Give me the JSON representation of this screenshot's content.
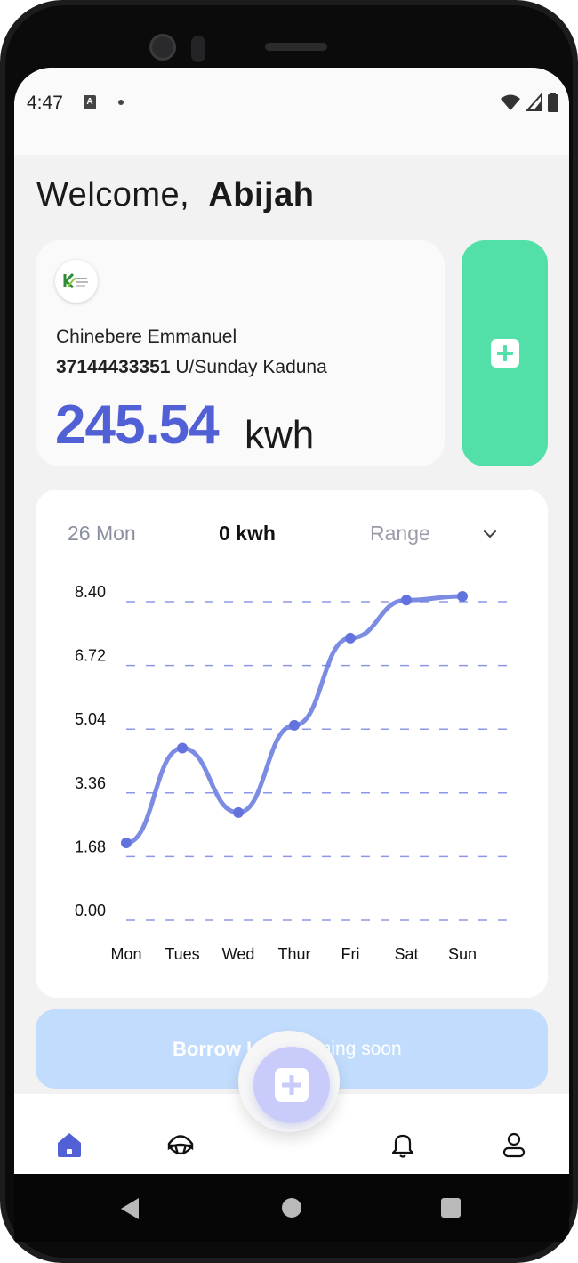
{
  "status_bar": {
    "time": "4:47",
    "notification_icon": "A"
  },
  "header": {
    "greeting": "Welcome,",
    "user_name": "Abijah"
  },
  "meter_card": {
    "logo_icon": "company-logo",
    "owner_name": "Chinebere Emmanuel",
    "meter_number": "37144433351",
    "address": "U/Sunday Kaduna",
    "balance_value": "245.54",
    "balance_unit": "kwh"
  },
  "chart_header": {
    "date_label": "26 Mon",
    "kwh_label": "0 kwh",
    "range_label": "Range"
  },
  "chart_data": {
    "type": "line",
    "categories": [
      "Mon",
      "Tues",
      "Wed",
      "Thur",
      "Fri",
      "Sat",
      "Sun"
    ],
    "series": [
      {
        "values": [
          1.9,
          4.4,
          2.7,
          5.0,
          7.3,
          8.3,
          8.4
        ]
      }
    ],
    "y_ticks": [
      "0.00",
      "1.68",
      "3.36",
      "5.04",
      "6.72",
      "8.40"
    ],
    "ylim": [
      0,
      8.4
    ],
    "grid": "dashed horizontal",
    "color": "#6f80e0"
  },
  "actions": {
    "borrow_label": "Borrow Unit",
    "coming_soon_label": "Coming soon"
  },
  "colors": {
    "accent": "#5260d6",
    "green": "#53e0a8",
    "borrow_bg": "#c2dcfd",
    "fab_bg": "#c9cbfa"
  }
}
